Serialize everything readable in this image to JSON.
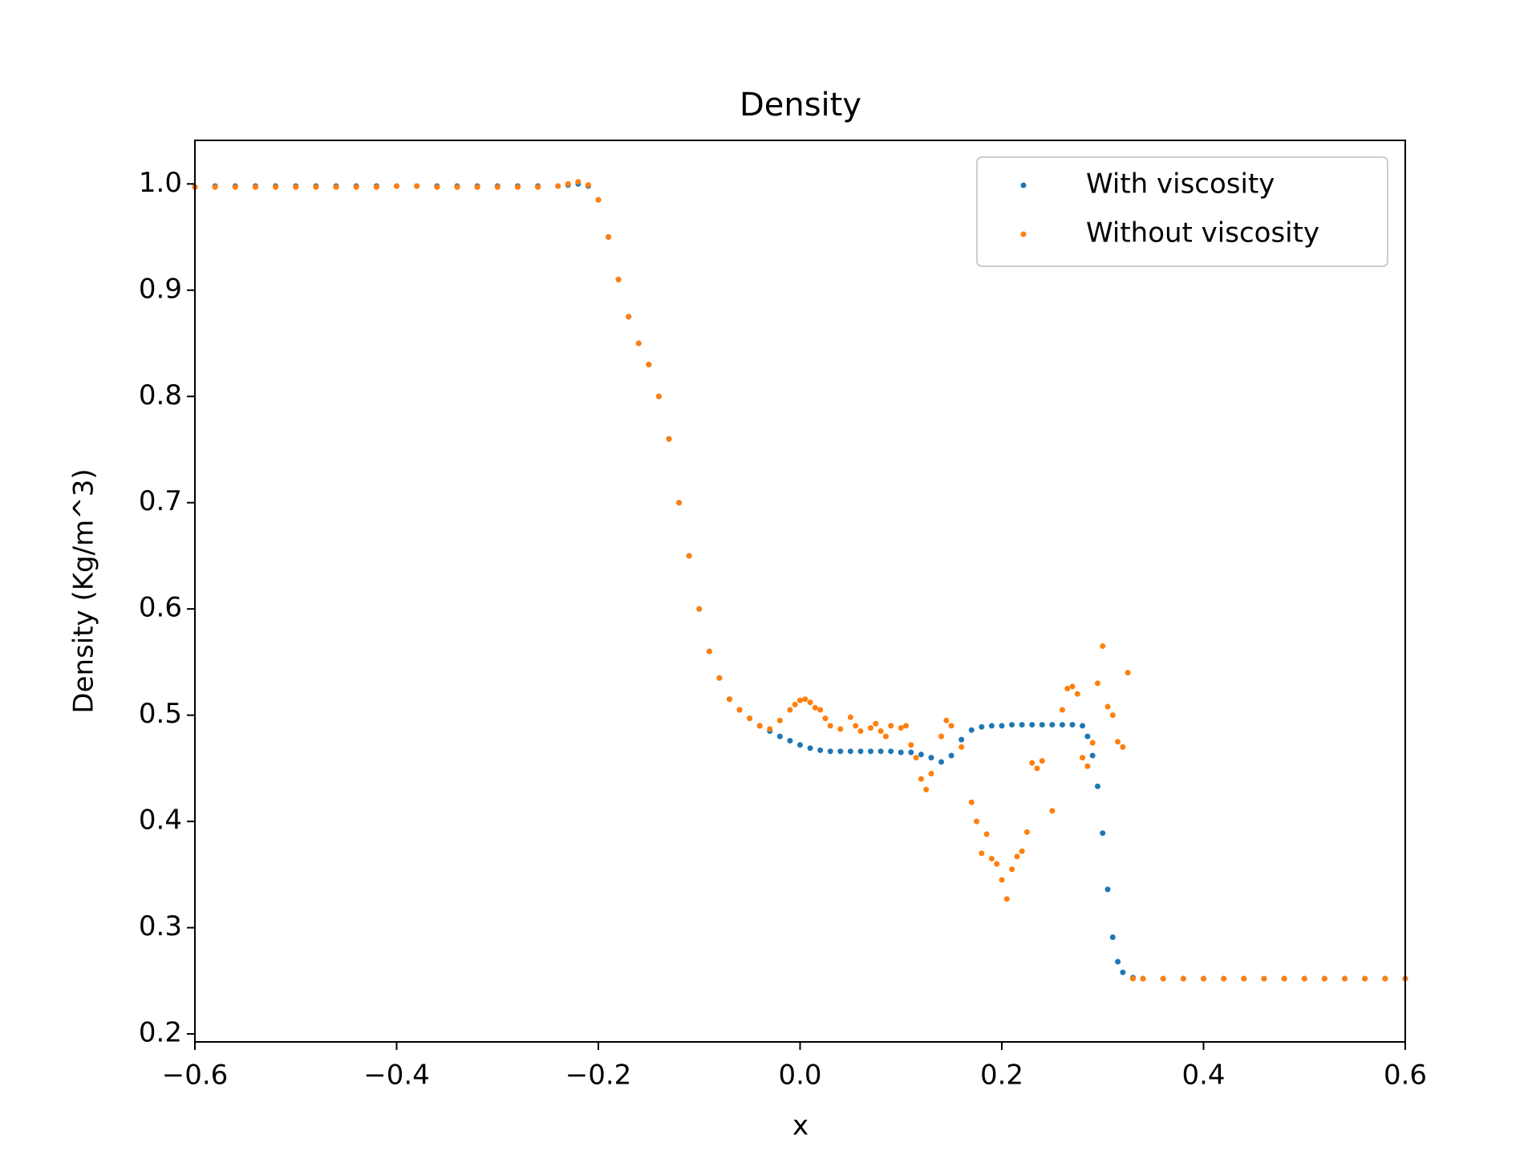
{
  "chart_data": {
    "type": "scatter",
    "title": "Density",
    "x_label": "x",
    "y_label": "Density (Kg/m^3)",
    "xlim": [
      -0.6,
      0.6
    ],
    "ylim": [
      0.1925,
      1.041
    ],
    "xticks": [
      {
        "value": -0.6,
        "label": "−0.6"
      },
      {
        "value": -0.4,
        "label": "−0.4"
      },
      {
        "value": -0.2,
        "label": "−0.2"
      },
      {
        "value": 0,
        "label": "0.0"
      },
      0.2,
      0.4,
      0.6
    ],
    "yticks": [
      0.2,
      0.3,
      0.4,
      0.5,
      0.6,
      0.7,
      0.8,
      0.9,
      {
        "value": 1,
        "label": "1.0"
      }
    ],
    "legend": "upper right",
    "grid": false,
    "series": [
      {
        "name": "With viscosity",
        "color": "#1f77b4",
        "x": [
          -0.6,
          -0.58,
          -0.56,
          -0.54,
          -0.52,
          -0.5,
          -0.48,
          -0.46,
          -0.44,
          -0.42,
          -0.4,
          -0.38,
          -0.36,
          -0.34,
          -0.32,
          -0.3,
          -0.28,
          -0.26,
          -0.24,
          -0.23,
          -0.22,
          -0.21,
          -0.2,
          -0.19,
          -0.18,
          -0.17,
          -0.16,
          -0.15,
          -0.14,
          -0.13,
          -0.12,
          -0.11,
          -0.1,
          -0.09,
          -0.08,
          -0.07,
          -0.06,
          -0.05,
          -0.04,
          -0.03,
          -0.02,
          -0.01,
          0,
          0.01,
          0.02,
          0.03,
          0.04,
          0.05,
          0.06,
          0.07,
          0.08,
          0.09,
          0.1,
          0.11,
          0.12,
          0.13,
          0.14,
          0.15,
          0.16,
          0.17,
          0.18,
          0.19,
          0.2,
          0.21,
          0.22,
          0.23,
          0.24,
          0.25,
          0.26,
          0.27,
          0.28,
          0.285,
          0.29,
          0.295,
          0.3,
          0.305,
          0.31,
          0.315,
          0.32,
          0.33,
          0.34,
          0.36,
          0.38,
          0.4,
          0.42,
          0.44,
          0.46,
          0.48,
          0.5,
          0.52,
          0.54,
          0.56,
          0.58,
          0.6
        ],
        "values": [
          0.997,
          0.998,
          0.998,
          0.998,
          0.998,
          0.998,
          0.998,
          0.998,
          0.998,
          0.998,
          0.998,
          0.998,
          0.998,
          0.998,
          0.998,
          0.998,
          0.998,
          0.998,
          0.998,
          0.999,
          1.0,
          0.998,
          0.985,
          0.95,
          0.91,
          0.875,
          0.85,
          0.83,
          0.8,
          0.76,
          0.7,
          0.65,
          0.6,
          0.56,
          0.535,
          0.515,
          0.505,
          0.497,
          0.49,
          0.485,
          0.48,
          0.476,
          0.472,
          0.469,
          0.467,
          0.466,
          0.466,
          0.466,
          0.466,
          0.466,
          0.466,
          0.466,
          0.465,
          0.465,
          0.463,
          0.46,
          0.456,
          0.462,
          0.477,
          0.486,
          0.489,
          0.49,
          0.49,
          0.491,
          0.491,
          0.491,
          0.491,
          0.491,
          0.491,
          0.491,
          0.49,
          0.48,
          0.462,
          0.433,
          0.389,
          0.336,
          0.291,
          0.268,
          0.258,
          0.253,
          0.252,
          0.252,
          0.252,
          0.252,
          0.252,
          0.252,
          0.252,
          0.252,
          0.252,
          0.252,
          0.252,
          0.252,
          0.252,
          0.252
        ]
      },
      {
        "name": "Without viscosity",
        "color": "#ff7f0e",
        "x": [
          -0.6,
          -0.58,
          -0.56,
          -0.54,
          -0.52,
          -0.5,
          -0.48,
          -0.46,
          -0.44,
          -0.42,
          -0.4,
          -0.38,
          -0.36,
          -0.34,
          -0.32,
          -0.3,
          -0.28,
          -0.26,
          -0.24,
          -0.23,
          -0.22,
          -0.21,
          -0.2,
          -0.19,
          -0.18,
          -0.17,
          -0.16,
          -0.15,
          -0.14,
          -0.13,
          -0.12,
          -0.11,
          -0.1,
          -0.09,
          -0.08,
          -0.07,
          -0.06,
          -0.05,
          -0.04,
          -0.03,
          -0.02,
          -0.01,
          -0.005,
          0,
          0.005,
          0.01,
          0.015,
          0.02,
          0.025,
          0.03,
          0.04,
          0.05,
          0.055,
          0.06,
          0.07,
          0.075,
          0.08,
          0.085,
          0.09,
          0.1,
          0.105,
          0.11,
          0.115,
          0.12,
          0.125,
          0.13,
          0.14,
          0.145,
          0.15,
          0.16,
          0.17,
          0.175,
          0.18,
          0.185,
          0.19,
          0.195,
          0.2,
          0.205,
          0.21,
          0.215,
          0.22,
          0.225,
          0.23,
          0.235,
          0.24,
          0.25,
          0.26,
          0.265,
          0.27,
          0.275,
          0.28,
          0.285,
          0.29,
          0.295,
          0.3,
          0.305,
          0.31,
          0.315,
          0.32,
          0.325,
          0.33,
          0.34,
          0.36,
          0.38,
          0.4,
          0.42,
          0.44,
          0.46,
          0.48,
          0.5,
          0.52,
          0.54,
          0.56,
          0.58,
          0.6
        ],
        "values": [
          0.997,
          0.997,
          0.997,
          0.997,
          0.997,
          0.997,
          0.997,
          0.997,
          0.997,
          0.997,
          0.998,
          0.998,
          0.997,
          0.997,
          0.997,
          0.997,
          0.997,
          0.997,
          0.998,
          1.0,
          1.002,
          0.999,
          0.985,
          0.95,
          0.91,
          0.875,
          0.85,
          0.83,
          0.8,
          0.76,
          0.7,
          0.65,
          0.6,
          0.56,
          0.535,
          0.515,
          0.505,
          0.497,
          0.49,
          0.487,
          0.495,
          0.505,
          0.51,
          0.514,
          0.515,
          0.512,
          0.507,
          0.505,
          0.497,
          0.49,
          0.487,
          0.498,
          0.49,
          0.485,
          0.488,
          0.492,
          0.485,
          0.48,
          0.49,
          0.488,
          0.49,
          0.472,
          0.46,
          0.44,
          0.43,
          0.445,
          0.48,
          0.495,
          0.49,
          0.47,
          0.418,
          0.4,
          0.37,
          0.388,
          0.365,
          0.36,
          0.345,
          0.327,
          0.355,
          0.367,
          0.372,
          0.39,
          0.455,
          0.45,
          0.457,
          0.41,
          0.505,
          0.525,
          0.527,
          0.52,
          0.46,
          0.452,
          0.474,
          0.53,
          0.565,
          0.508,
          0.5,
          0.475,
          0.47,
          0.54,
          0.252,
          0.252,
          0.252,
          0.252,
          0.252,
          0.252,
          0.252,
          0.252,
          0.252,
          0.252,
          0.252,
          0.252,
          0.252,
          0.252,
          0.252
        ]
      }
    ]
  }
}
